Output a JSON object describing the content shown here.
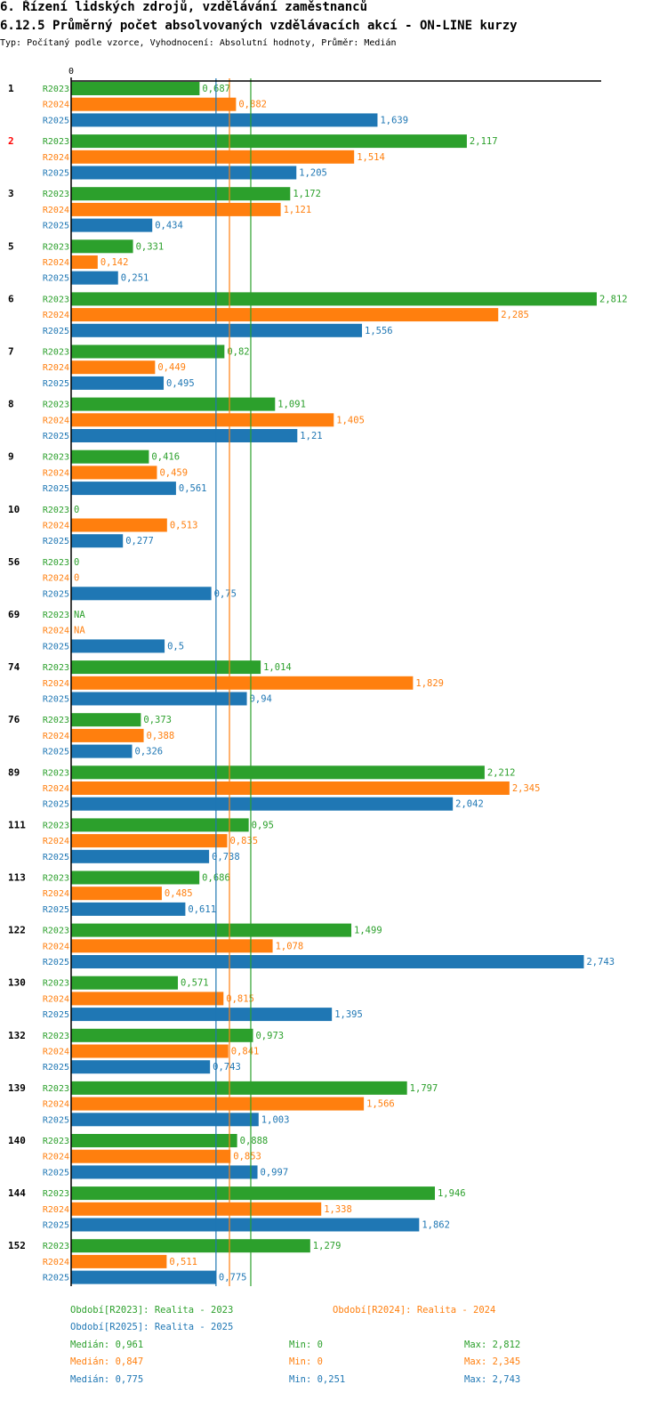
{
  "header": {
    "title": "6. Řízení lidských zdrojů, vzdělávání zaměstnanců",
    "subtitle": "6.12.5 Průměrný počet absolvovaných vzdělávacích akcí - ON-LINE kurzy",
    "type_line": "Typ: Počítaný podle vzorce, Vyhodnocení: Absolutní hodnoty, Průměr: Medián"
  },
  "colors": {
    "R2023": "#2ca02c",
    "R2024": "#ff7f0e",
    "R2025": "#1f77b4",
    "highlight": "#ff0000",
    "text": "#000000"
  },
  "chart_data": {
    "type": "bar",
    "orientation": "horizontal",
    "axis_zero_label": "0",
    "xlim": [
      0,
      2.812
    ],
    "highlighted_category": "2",
    "series_names": [
      "R2023",
      "R2024",
      "R2025"
    ],
    "categories": [
      "1",
      "2",
      "3",
      "5",
      "6",
      "7",
      "8",
      "9",
      "10",
      "56",
      "69",
      "74",
      "76",
      "89",
      "111",
      "113",
      "122",
      "130",
      "132",
      "139",
      "140",
      "144",
      "152"
    ],
    "series": [
      {
        "name": "R2023",
        "values": [
          0.687,
          2.117,
          1.172,
          0.331,
          2.812,
          0.82,
          1.091,
          0.416,
          0,
          0,
          null,
          1.014,
          0.373,
          2.212,
          0.95,
          0.686,
          1.499,
          0.571,
          0.973,
          1.797,
          0.888,
          1.946,
          1.279
        ],
        "labels": [
          "0,687",
          "2,117",
          "1,172",
          "0,331",
          "2,812",
          "0,82",
          "1,091",
          "0,416",
          "0",
          "0",
          "NA",
          "1,014",
          "0,373",
          "2,212",
          "0,95",
          "0,686",
          "1,499",
          "0,571",
          "0,973",
          "1,797",
          "0,888",
          "1,946",
          "1,279"
        ]
      },
      {
        "name": "R2024",
        "values": [
          0.882,
          1.514,
          1.121,
          0.142,
          2.285,
          0.449,
          1.405,
          0.459,
          0.513,
          0,
          null,
          1.829,
          0.388,
          2.345,
          0.835,
          0.485,
          1.078,
          0.815,
          0.841,
          1.566,
          0.853,
          1.338,
          0.511
        ],
        "labels": [
          "0,882",
          "1,514",
          "1,121",
          "0,142",
          "2,285",
          "0,449",
          "1,405",
          "0,459",
          "0,513",
          "0",
          "NA",
          "1,829",
          "0,388",
          "2,345",
          "0,835",
          "0,485",
          "1,078",
          "0,815",
          "0,841",
          "1,566",
          "0,853",
          "1,338",
          "0,511"
        ]
      },
      {
        "name": "R2025",
        "values": [
          1.639,
          1.205,
          0.434,
          0.251,
          1.556,
          0.495,
          1.21,
          0.561,
          0.277,
          0.75,
          0.5,
          0.94,
          0.326,
          2.042,
          0.738,
          0.611,
          2.743,
          1.395,
          0.743,
          1.003,
          0.997,
          1.862,
          0.775
        ],
        "labels": [
          "1,639",
          "1,205",
          "0,434",
          "0,251",
          "1,556",
          "0,495",
          "1,21",
          "0,561",
          "0,277",
          "0,75",
          "0,5",
          "0,94",
          "0,326",
          "2,042",
          "0,738",
          "0,611",
          "2,743",
          "1,395",
          "0,743",
          "1,003",
          "0,997",
          "1,862",
          "0,775"
        ]
      }
    ],
    "medians": [
      {
        "series": "R2023",
        "value": 0.961
      },
      {
        "series": "R2024",
        "value": 0.847
      },
      {
        "series": "R2025",
        "value": 0.775
      }
    ]
  },
  "legend": {
    "periods": [
      "Období[R2023]: Realita - 2023",
      "Období[R2024]: Realita - 2024",
      "Období[R2025]: Realita - 2025"
    ],
    "stats": [
      {
        "median": "Medián: 0,961",
        "min": "Min: 0",
        "max": "Max: 2,812"
      },
      {
        "median": "Medián: 0,847",
        "min": "Min: 0",
        "max": "Max: 2,345"
      },
      {
        "median": "Medián: 0,775",
        "min": "Min: 0,251",
        "max": "Max: 2,743"
      }
    ]
  }
}
